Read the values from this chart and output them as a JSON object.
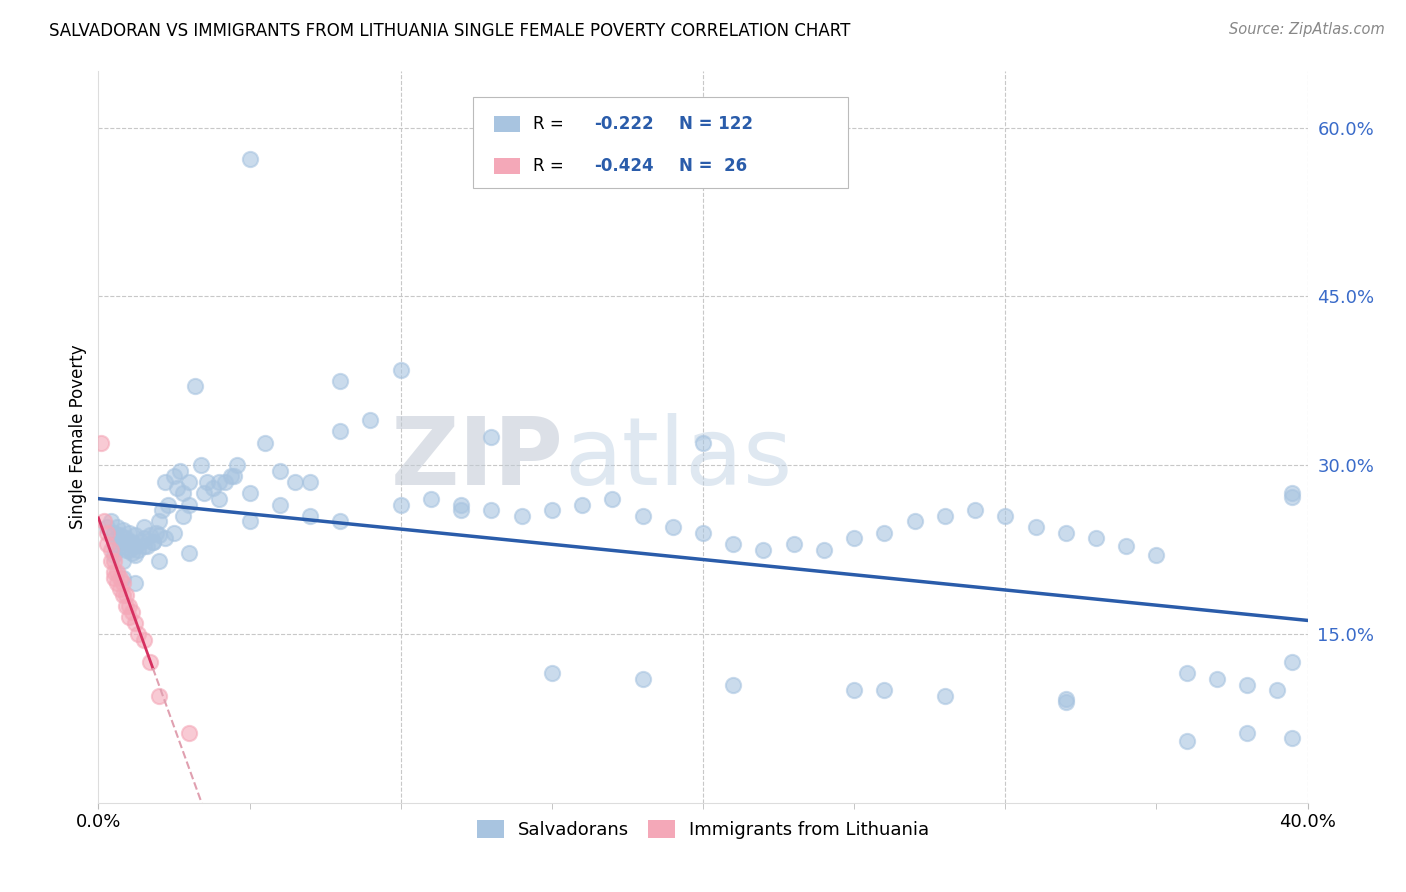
{
  "title": "SALVADORAN VS IMMIGRANTS FROM LITHUANIA SINGLE FEMALE POVERTY CORRELATION CHART",
  "source": "Source: ZipAtlas.com",
  "ylabel": "Single Female Poverty",
  "salvadoran_color": "#a8c4e0",
  "lithuania_color": "#f4a8b8",
  "trendline_salvadoran_color": "#2a5caa",
  "trendline_lithuania_color": "#d63060",
  "trendline_lithuania_dash_color": "#e0a0b0",
  "background_color": "#ffffff",
  "grid_color": "#c8c8c8",
  "xlim": [
    0.0,
    0.4
  ],
  "ylim": [
    0.0,
    0.65
  ],
  "yticks": [
    0.15,
    0.3,
    0.45,
    0.6
  ],
  "yticklabels": [
    "15.0%",
    "30.0%",
    "45.0%",
    "60.0%"
  ],
  "xtick_left": "0.0%",
  "xtick_right": "40.0%",
  "r_salvadoran": -0.222,
  "n_salvadoran": 122,
  "r_lithuania": -0.424,
  "n_lithuania": 26,
  "legend_r1": "R = −0.222",
  "legend_n1": "N = 122",
  "legend_r2": "R = −0.424",
  "legend_n2": "N =  26",
  "watermark": "ZIPatlas",
  "salvadoran_x": [
    0.003,
    0.004,
    0.005,
    0.005,
    0.006,
    0.006,
    0.007,
    0.007,
    0.008,
    0.008,
    0.009,
    0.009,
    0.01,
    0.01,
    0.011,
    0.011,
    0.012,
    0.012,
    0.013,
    0.014,
    0.015,
    0.015,
    0.016,
    0.017,
    0.018,
    0.019,
    0.02,
    0.021,
    0.022,
    0.023,
    0.025,
    0.026,
    0.027,
    0.028,
    0.03,
    0.032,
    0.034,
    0.036,
    0.038,
    0.04,
    0.042,
    0.044,
    0.046,
    0.05,
    0.055,
    0.06,
    0.065,
    0.07,
    0.08,
    0.09,
    0.1,
    0.11,
    0.12,
    0.13,
    0.14,
    0.15,
    0.16,
    0.17,
    0.18,
    0.19,
    0.2,
    0.21,
    0.22,
    0.23,
    0.24,
    0.25,
    0.26,
    0.27,
    0.28,
    0.29,
    0.3,
    0.31,
    0.32,
    0.33,
    0.34,
    0.35,
    0.36,
    0.37,
    0.38,
    0.39,
    0.005,
    0.008,
    0.01,
    0.012,
    0.015,
    0.018,
    0.02,
    0.022,
    0.025,
    0.028,
    0.03,
    0.035,
    0.04,
    0.045,
    0.05,
    0.06,
    0.07,
    0.08,
    0.1,
    0.12,
    0.15,
    0.18,
    0.21,
    0.25,
    0.28,
    0.32,
    0.36,
    0.395,
    0.008,
    0.012,
    0.02,
    0.03,
    0.05,
    0.08,
    0.13,
    0.2,
    0.26,
    0.32,
    0.38,
    0.395,
    0.395,
    0.395
  ],
  "salvadoran_y": [
    0.245,
    0.25,
    0.23,
    0.24,
    0.235,
    0.245,
    0.228,
    0.238,
    0.232,
    0.242,
    0.225,
    0.235,
    0.23,
    0.24,
    0.222,
    0.232,
    0.228,
    0.238,
    0.225,
    0.232,
    0.235,
    0.245,
    0.228,
    0.238,
    0.232,
    0.24,
    0.25,
    0.26,
    0.285,
    0.265,
    0.29,
    0.28,
    0.295,
    0.275,
    0.285,
    0.37,
    0.3,
    0.285,
    0.28,
    0.27,
    0.285,
    0.29,
    0.3,
    0.275,
    0.32,
    0.295,
    0.285,
    0.285,
    0.375,
    0.34,
    0.385,
    0.27,
    0.265,
    0.26,
    0.255,
    0.26,
    0.265,
    0.27,
    0.255,
    0.245,
    0.24,
    0.23,
    0.225,
    0.23,
    0.225,
    0.235,
    0.24,
    0.25,
    0.255,
    0.26,
    0.255,
    0.245,
    0.24,
    0.235,
    0.228,
    0.22,
    0.115,
    0.11,
    0.105,
    0.1,
    0.22,
    0.215,
    0.225,
    0.22,
    0.228,
    0.232,
    0.238,
    0.235,
    0.24,
    0.255,
    0.265,
    0.275,
    0.285,
    0.29,
    0.25,
    0.265,
    0.255,
    0.25,
    0.265,
    0.26,
    0.115,
    0.11,
    0.105,
    0.1,
    0.095,
    0.09,
    0.055,
    0.275,
    0.2,
    0.195,
    0.215,
    0.222,
    0.572,
    0.33,
    0.325,
    0.32,
    0.1,
    0.092,
    0.062,
    0.058,
    0.272,
    0.125
  ],
  "lithuania_x": [
    0.001,
    0.002,
    0.003,
    0.003,
    0.004,
    0.004,
    0.005,
    0.005,
    0.005,
    0.006,
    0.006,
    0.007,
    0.007,
    0.008,
    0.008,
    0.009,
    0.009,
    0.01,
    0.01,
    0.011,
    0.012,
    0.013,
    0.015,
    0.017,
    0.02,
    0.03
  ],
  "lithuania_y": [
    0.32,
    0.25,
    0.24,
    0.23,
    0.225,
    0.215,
    0.215,
    0.205,
    0.2,
    0.205,
    0.195,
    0.2,
    0.19,
    0.195,
    0.185,
    0.185,
    0.175,
    0.175,
    0.165,
    0.17,
    0.16,
    0.15,
    0.145,
    0.125,
    0.095,
    0.062
  ]
}
